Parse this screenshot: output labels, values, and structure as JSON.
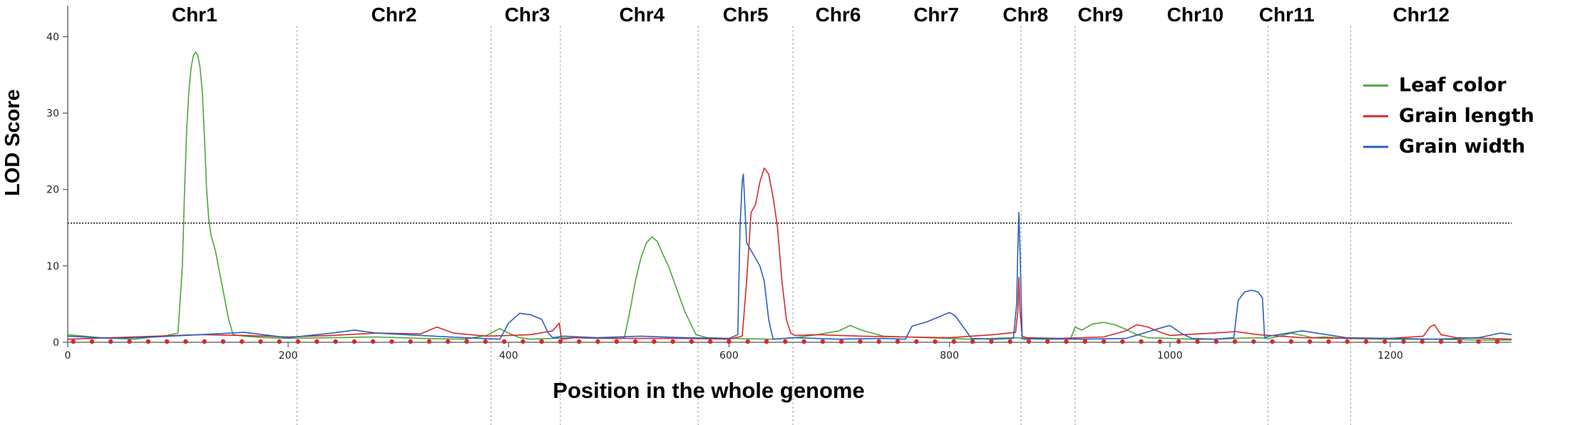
{
  "chart_data": {
    "type": "line",
    "xlabel": "Position in the whole genome",
    "ylabel": "LOD Score",
    "xlim": [
      0,
      1310
    ],
    "ylim": [
      0,
      42
    ],
    "x_ticks": [
      0,
      200,
      400,
      600,
      800,
      1000,
      1200
    ],
    "y_ticks": [
      0,
      10,
      20,
      30,
      40
    ],
    "threshold": 15.6,
    "chromosome_boundaries": [
      208,
      384,
      447,
      572,
      658,
      865,
      914,
      1089,
      1164
    ],
    "chromosomes": [
      {
        "name": "Chr1",
        "x": 115
      },
      {
        "name": "Chr2",
        "x": 296
      },
      {
        "name": "Chr3",
        "x": 417
      },
      {
        "name": "Chr4",
        "x": 521
      },
      {
        "name": "Chr5",
        "x": 615
      },
      {
        "name": "Chr6",
        "x": 699
      },
      {
        "name": "Chr7",
        "x": 788
      },
      {
        "name": "Chr8",
        "x": 869
      },
      {
        "name": "Chr9",
        "x": 937
      },
      {
        "name": "Chr10",
        "x": 1023
      },
      {
        "name": "Chr11",
        "x": 1106
      },
      {
        "name": "Chr12",
        "x": 1228
      }
    ],
    "legend_position": "right",
    "series": [
      {
        "name": "Leaf color",
        "color": "#4aa83a",
        "x": [
          0,
          30,
          60,
          90,
          100,
          104,
          106,
          108,
          110,
          112,
          114,
          116,
          118,
          120,
          122,
          124,
          126,
          128,
          130,
          134,
          138,
          142,
          146,
          150,
          160,
          180,
          200,
          240,
          280,
          320,
          360,
          380,
          392,
          400,
          410,
          420,
          440,
          460,
          480,
          500,
          505,
          510,
          515,
          520,
          525,
          530,
          535,
          540,
          545,
          550,
          555,
          560,
          565,
          570,
          580,
          600,
          640,
          660,
          680,
          700,
          710,
          720,
          740,
          760,
          780,
          800,
          820,
          840,
          860,
          880,
          900,
          910,
          914,
          920,
          930,
          940,
          950,
          960,
          970,
          980,
          1000,
          1020,
          1040,
          1060,
          1080,
          1090,
          1100,
          1110,
          1120,
          1130,
          1140,
          1160,
          1200,
          1240,
          1280,
          1310
        ],
        "y": [
          1.0,
          0.6,
          0.4,
          0.9,
          1.2,
          10,
          20,
          28,
          33,
          36,
          37.5,
          38,
          37.6,
          36,
          33,
          27,
          20,
          16,
          14,
          12,
          9,
          6,
          3,
          1.0,
          0.8,
          0.6,
          0.5,
          0.6,
          0.7,
          0.5,
          0.4,
          0.9,
          1.8,
          1.2,
          0.6,
          0.4,
          0.5,
          0.6,
          0.5,
          0.5,
          0.6,
          4,
          8,
          11,
          13,
          13.8,
          13.2,
          11.5,
          10,
          8,
          6,
          4,
          2.5,
          1.0,
          0.6,
          0.5,
          0.4,
          0.6,
          1.0,
          1.5,
          2.2,
          1.6,
          0.8,
          0.7,
          0.6,
          0.5,
          0.4,
          0.5,
          0.6,
          0.4,
          0.4,
          0.5,
          2.0,
          1.6,
          2.4,
          2.6,
          2.3,
          1.7,
          1.0,
          0.6,
          0.5,
          0.4,
          0.4,
          0.5,
          0.6,
          0.5,
          0.8,
          1.2,
          0.9,
          0.6,
          0.7,
          0.5,
          0.4,
          0.4,
          0.3,
          0.3
        ]
      },
      {
        "name": "Grain length",
        "color": "#d42a2a",
        "x": [
          0,
          40,
          80,
          120,
          160,
          200,
          240,
          280,
          320,
          335,
          350,
          380,
          400,
          420,
          440,
          446,
          448,
          460,
          500,
          560,
          600,
          612,
          616,
          620,
          624,
          628,
          632,
          636,
          640,
          644,
          648,
          652,
          656,
          660,
          680,
          720,
          760,
          800,
          840,
          860,
          862,
          863,
          864,
          866,
          870,
          900,
          940,
          960,
          970,
          980,
          990,
          1000,
          1040,
          1060,
          1080,
          1100,
          1120,
          1160,
          1200,
          1230,
          1236,
          1240,
          1246,
          1260,
          1290,
          1310
        ],
        "y": [
          0.4,
          0.6,
          0.8,
          1.0,
          0.9,
          0.7,
          0.9,
          1.2,
          1.1,
          2.0,
          1.2,
          0.8,
          0.9,
          1.0,
          1.5,
          2.5,
          0.4,
          0.6,
          0.5,
          0.5,
          0.4,
          0.8,
          8,
          17,
          18,
          21,
          22.8,
          22,
          19,
          15,
          8,
          3,
          1.2,
          0.9,
          1.0,
          0.8,
          0.7,
          0.6,
          1.0,
          1.3,
          4,
          8.5,
          4,
          0.8,
          0.6,
          0.5,
          0.7,
          1.5,
          2.3,
          2.0,
          1.4,
          0.9,
          1.2,
          1.4,
          1.0,
          0.8,
          0.6,
          0.5,
          0.5,
          0.8,
          2.0,
          2.3,
          1.0,
          0.6,
          0.5,
          0.4
        ]
      },
      {
        "name": "Grain width",
        "color": "#2a5fbf",
        "x": [
          0,
          40,
          80,
          120,
          160,
          200,
          240,
          260,
          280,
          320,
          360,
          392,
          400,
          410,
          420,
          430,
          436,
          440,
          450,
          480,
          520,
          560,
          600,
          608,
          610,
          612,
          613,
          616,
          620,
          624,
          628,
          632,
          636,
          640,
          660,
          700,
          740,
          760,
          766,
          780,
          795,
          800,
          805,
          820,
          840,
          858,
          861,
          862,
          863,
          864,
          866,
          868,
          880,
          920,
          960,
          990,
          1000,
          1010,
          1020,
          1040,
          1058,
          1062,
          1068,
          1074,
          1080,
          1084,
          1086,
          1090,
          1120,
          1160,
          1200,
          1240,
          1280,
          1300,
          1310
        ],
        "y": [
          0.8,
          0.5,
          0.7,
          1.0,
          1.3,
          0.6,
          1.2,
          1.6,
          1.2,
          0.9,
          0.6,
          0.4,
          2.5,
          3.8,
          3.6,
          3.0,
          1.2,
          0.6,
          0.8,
          0.6,
          0.8,
          0.6,
          0.5,
          1.0,
          15,
          21,
          22,
          13,
          12,
          11,
          10,
          8,
          3,
          0.4,
          0.6,
          0.4,
          0.5,
          0.4,
          2.1,
          2.7,
          3.6,
          3.9,
          3.5,
          0.5,
          0.4,
          0.5,
          5,
          12,
          17,
          12,
          0.5,
          0.4,
          0.5,
          0.4,
          0.5,
          1.8,
          2.2,
          1.2,
          0.5,
          0.4,
          0.6,
          5.5,
          6.6,
          6.8,
          6.6,
          5.8,
          0.6,
          0.8,
          1.5,
          0.6,
          0.5,
          0.4,
          0.6,
          1.2,
          1.0
        ]
      }
    ]
  }
}
